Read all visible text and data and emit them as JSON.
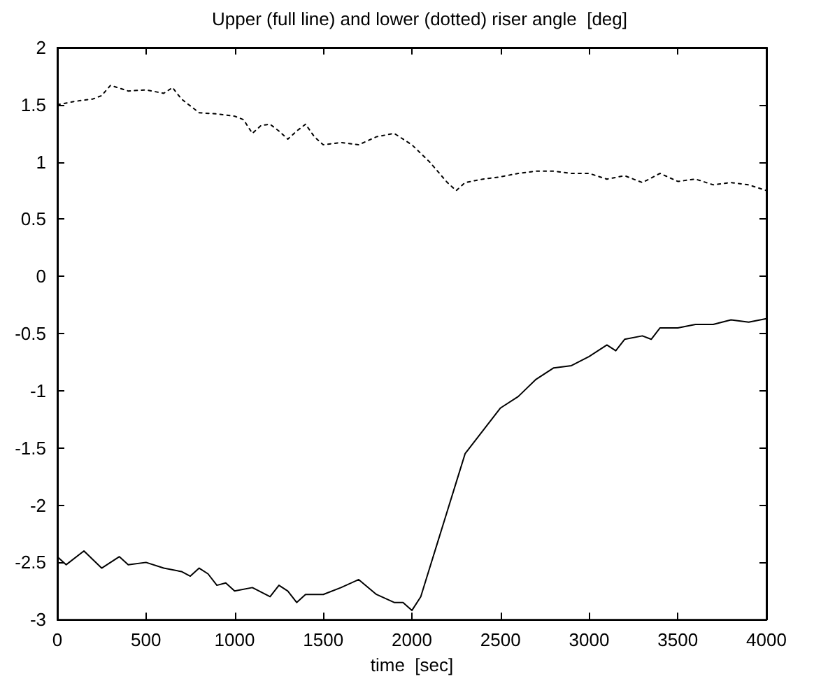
{
  "chart_data": {
    "type": "line",
    "title": "Upper (full line) and lower (dotted) riser angle  [deg]",
    "xlabel": "time  [sec]",
    "xlim": [
      0,
      4000
    ],
    "xticks": [
      0,
      500,
      1000,
      1500,
      2000,
      2500,
      3000,
      3500,
      4000
    ],
    "ylim": [
      -3,
      2
    ],
    "yticks": [
      -3,
      -2.5,
      -2,
      -1.5,
      -1,
      -0.5,
      0,
      0.5,
      1,
      1.5,
      2
    ],
    "grid": false,
    "marker": "none",
    "series": [
      {
        "color": "#000000",
        "line_style": "dotted",
        "x": [
          0,
          100,
          200,
          250,
          300,
          400,
          500,
          600,
          650,
          700,
          800,
          900,
          1000,
          1050,
          1100,
          1150,
          1200,
          1250,
          1300,
          1350,
          1400,
          1450,
          1500,
          1600,
          1700,
          1800,
          1900,
          2000,
          2100,
          2200,
          2250,
          2300,
          2400,
          2500,
          2600,
          2700,
          2800,
          2900,
          3000,
          3100,
          3200,
          3300,
          3400,
          3500,
          3600,
          3700,
          3800,
          3900,
          4000
        ],
        "values": [
          1.5,
          1.53,
          1.55,
          1.58,
          1.67,
          1.62,
          1.63,
          1.6,
          1.65,
          1.55,
          1.43,
          1.42,
          1.4,
          1.37,
          1.25,
          1.32,
          1.33,
          1.27,
          1.2,
          1.27,
          1.33,
          1.22,
          1.15,
          1.17,
          1.15,
          1.22,
          1.25,
          1.15,
          1.0,
          0.82,
          0.75,
          0.82,
          0.85,
          0.87,
          0.9,
          0.92,
          0.92,
          0.9,
          0.9,
          0.85,
          0.88,
          0.82,
          0.9,
          0.83,
          0.85,
          0.8,
          0.82,
          0.8,
          0.75
        ]
      },
      {
        "color": "#000000",
        "line_style": "solid",
        "x": [
          0,
          50,
          150,
          250,
          350,
          400,
          500,
          600,
          700,
          750,
          800,
          850,
          900,
          950,
          1000,
          1100,
          1200,
          1250,
          1300,
          1350,
          1400,
          1500,
          1600,
          1700,
          1800,
          1900,
          1950,
          2000,
          2050,
          2100,
          2150,
          2200,
          2250,
          2300,
          2400,
          2500,
          2600,
          2700,
          2800,
          2900,
          3000,
          3100,
          3150,
          3200,
          3300,
          3350,
          3400,
          3500,
          3600,
          3700,
          3800,
          3900,
          4000
        ],
        "values": [
          -2.45,
          -2.52,
          -2.4,
          -2.55,
          -2.45,
          -2.52,
          -2.5,
          -2.55,
          -2.58,
          -2.62,
          -2.55,
          -2.6,
          -2.7,
          -2.68,
          -2.75,
          -2.72,
          -2.8,
          -2.7,
          -2.75,
          -2.85,
          -2.78,
          -2.78,
          -2.72,
          -2.65,
          -2.78,
          -2.85,
          -2.85,
          -2.92,
          -2.8,
          -2.55,
          -2.3,
          -2.05,
          -1.8,
          -1.55,
          -1.35,
          -1.15,
          -1.05,
          -0.9,
          -0.8,
          -0.78,
          -0.7,
          -0.6,
          -0.65,
          -0.55,
          -0.52,
          -0.55,
          -0.45,
          -0.45,
          -0.42,
          -0.42,
          -0.38,
          -0.4,
          -0.37
        ]
      }
    ]
  }
}
